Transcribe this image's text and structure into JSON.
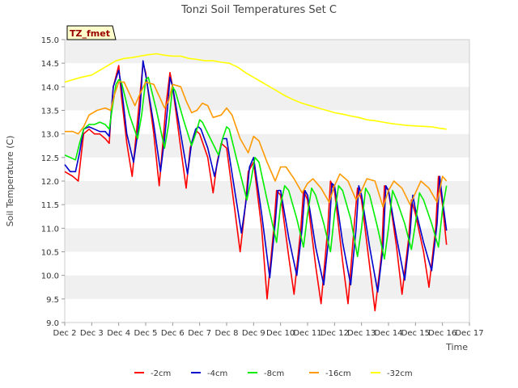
{
  "chart_data": {
    "type": "line",
    "title": "Tonzi Soil Temperatures Set C",
    "xlabel": "Time",
    "ylabel": "Soil Temperature (C)",
    "annotation": "TZ_fmet",
    "xlim": [
      2,
      17
    ],
    "ylim": [
      9.0,
      15.0
    ],
    "x_ticks": [
      {
        "value": 2,
        "label": "Dec 2"
      },
      {
        "value": 3,
        "label": "Dec 3"
      },
      {
        "value": 4,
        "label": "Dec 4"
      },
      {
        "value": 5,
        "label": "Dec 5"
      },
      {
        "value": 6,
        "label": "Dec 6"
      },
      {
        "value": 7,
        "label": "Dec 7"
      },
      {
        "value": 8,
        "label": "Dec 8"
      },
      {
        "value": 9,
        "label": "Dec 9"
      },
      {
        "value": 10,
        "label": "Dec 10"
      },
      {
        "value": 11,
        "label": "Dec 11"
      },
      {
        "value": 12,
        "label": "Dec 12"
      },
      {
        "value": 13,
        "label": "Dec 13"
      },
      {
        "value": 14,
        "label": "Dec 14"
      },
      {
        "value": 15,
        "label": "Dec 15"
      },
      {
        "value": 16,
        "label": "Dec 16"
      },
      {
        "value": 17,
        "label": "Dec 17"
      }
    ],
    "y_ticks": [
      {
        "value": 9.0,
        "label": "9.0"
      },
      {
        "value": 9.5,
        "label": "9.5"
      },
      {
        "value": 10.0,
        "label": "10.0"
      },
      {
        "value": 10.5,
        "label": "10.5"
      },
      {
        "value": 11.0,
        "label": "11.0"
      },
      {
        "value": 11.5,
        "label": "11.5"
      },
      {
        "value": 12.0,
        "label": "12.0"
      },
      {
        "value": 12.5,
        "label": "12.5"
      },
      {
        "value": 13.0,
        "label": "13.0"
      },
      {
        "value": 13.5,
        "label": "13.5"
      },
      {
        "value": 14.0,
        "label": "14.0"
      },
      {
        "value": 14.5,
        "label": "14.5"
      },
      {
        "value": 15.0,
        "label": "15.0"
      }
    ],
    "grid": "horizontal alternating bands",
    "legend_position": "bottom",
    "series": [
      {
        "name": "-2cm",
        "color": "#ff0000",
        "x": [
          2.0,
          2.3,
          2.5,
          2.6,
          2.7,
          2.9,
          3.1,
          3.3,
          3.5,
          3.65,
          3.7,
          3.8,
          4.0,
          4.1,
          4.3,
          4.5,
          4.65,
          4.75,
          4.9,
          5.0,
          5.3,
          5.5,
          5.65,
          5.75,
          5.9,
          6.0,
          6.3,
          6.5,
          6.65,
          6.8,
          6.9,
          7.0,
          7.3,
          7.5,
          7.65,
          7.8,
          8.0,
          8.3,
          8.5,
          8.7,
          8.8,
          9.0,
          9.3,
          9.5,
          9.75,
          9.85,
          10.0,
          10.3,
          10.5,
          10.75,
          10.85,
          11.0,
          11.3,
          11.5,
          11.75,
          11.85,
          12.0,
          12.3,
          12.5,
          12.75,
          12.85,
          13.0,
          13.3,
          13.5,
          13.75,
          13.85,
          14.0,
          14.3,
          14.5,
          14.75,
          14.85,
          15.0,
          15.3,
          15.5,
          15.75,
          15.85,
          16.0,
          16.15
        ],
        "y": [
          12.2,
          12.1,
          12.0,
          12.5,
          13.0,
          13.1,
          13.0,
          13.0,
          12.9,
          12.8,
          13.3,
          14.0,
          14.45,
          13.8,
          12.8,
          12.1,
          13.0,
          13.6,
          14.5,
          14.3,
          13.0,
          11.9,
          12.9,
          13.6,
          14.3,
          14.0,
          12.7,
          11.85,
          12.7,
          13.0,
          13.05,
          13.0,
          12.5,
          11.75,
          12.4,
          12.8,
          12.7,
          11.4,
          10.5,
          11.5,
          12.2,
          12.4,
          11.0,
          9.5,
          11.0,
          11.8,
          11.7,
          10.4,
          9.6,
          11.0,
          11.8,
          11.6,
          10.2,
          9.4,
          11.0,
          12.0,
          11.8,
          10.3,
          9.4,
          11.2,
          11.85,
          11.6,
          10.2,
          9.25,
          10.5,
          11.9,
          11.8,
          10.6,
          9.6,
          10.8,
          11.6,
          11.3,
          10.5,
          9.75,
          11.0,
          12.1,
          11.5,
          10.65
        ]
      },
      {
        "name": "-4cm",
        "color": "#0000cc",
        "x": [
          2.0,
          2.2,
          2.4,
          2.55,
          2.7,
          2.9,
          3.1,
          3.3,
          3.5,
          3.65,
          3.7,
          3.8,
          4.0,
          4.1,
          4.3,
          4.55,
          4.7,
          4.8,
          4.9,
          5.0,
          5.3,
          5.55,
          5.7,
          5.8,
          5.9,
          6.0,
          6.3,
          6.55,
          6.7,
          6.85,
          6.95,
          7.05,
          7.3,
          7.55,
          7.7,
          7.85,
          8.0,
          8.3,
          8.55,
          8.75,
          8.85,
          9.0,
          9.3,
          9.6,
          9.8,
          9.9,
          10.0,
          10.3,
          10.6,
          10.8,
          10.9,
          11.0,
          11.3,
          11.6,
          11.8,
          11.9,
          12.0,
          12.3,
          12.6,
          12.8,
          12.9,
          13.0,
          13.3,
          13.6,
          13.8,
          13.9,
          14.0,
          14.3,
          14.6,
          14.8,
          14.9,
          15.0,
          15.3,
          15.6,
          15.8,
          15.9,
          16.0,
          16.15
        ],
        "y": [
          12.35,
          12.2,
          12.2,
          12.6,
          13.1,
          13.15,
          13.1,
          13.05,
          13.05,
          12.95,
          13.3,
          14.0,
          14.35,
          14.0,
          13.0,
          12.4,
          13.0,
          13.6,
          14.55,
          14.25,
          13.2,
          12.2,
          12.9,
          13.5,
          14.2,
          14.0,
          13.0,
          12.15,
          12.8,
          13.1,
          13.15,
          13.1,
          12.7,
          12.1,
          12.5,
          12.9,
          12.9,
          11.8,
          10.9,
          11.7,
          12.3,
          12.5,
          11.3,
          9.95,
          11.1,
          11.8,
          11.8,
          10.8,
          10.0,
          11.0,
          11.8,
          11.7,
          10.6,
          9.8,
          10.9,
          11.95,
          11.9,
          10.7,
          9.8,
          11.0,
          11.9,
          11.7,
          10.6,
          9.65,
          10.6,
          11.9,
          11.8,
          10.8,
          9.9,
          10.9,
          11.7,
          11.4,
          10.7,
          10.1,
          11.1,
          12.1,
          11.6,
          10.95
        ]
      },
      {
        "name": "-8cm",
        "color": "#00ee00",
        "x": [
          2.0,
          2.2,
          2.4,
          2.55,
          2.7,
          2.9,
          3.1,
          3.3,
          3.5,
          3.65,
          3.75,
          3.9,
          4.0,
          4.1,
          4.4,
          4.7,
          4.85,
          5.0,
          5.1,
          5.4,
          5.7,
          5.85,
          6.0,
          6.1,
          6.4,
          6.7,
          6.85,
          7.0,
          7.1,
          7.4,
          7.7,
          7.85,
          8.0,
          8.1,
          8.4,
          8.75,
          8.9,
          9.05,
          9.2,
          9.5,
          9.85,
          10.0,
          10.15,
          10.3,
          10.6,
          10.85,
          11.0,
          11.15,
          11.3,
          11.6,
          11.85,
          12.0,
          12.15,
          12.3,
          12.6,
          12.85,
          13.0,
          13.15,
          13.3,
          13.6,
          13.85,
          14.0,
          14.15,
          14.3,
          14.6,
          14.85,
          15.0,
          15.15,
          15.3,
          15.6,
          15.85,
          16.0,
          16.15
        ],
        "y": [
          12.55,
          12.5,
          12.45,
          12.8,
          13.1,
          13.2,
          13.2,
          13.25,
          13.2,
          13.1,
          13.5,
          14.05,
          14.15,
          14.1,
          13.4,
          12.9,
          13.4,
          14.15,
          14.2,
          13.5,
          12.7,
          13.2,
          14.0,
          13.9,
          13.3,
          12.75,
          13.0,
          13.3,
          13.25,
          12.9,
          12.55,
          12.9,
          13.15,
          13.1,
          12.4,
          11.6,
          12.0,
          12.5,
          12.4,
          11.6,
          10.7,
          11.5,
          11.9,
          11.8,
          11.2,
          10.6,
          11.3,
          11.85,
          11.7,
          11.1,
          10.5,
          11.3,
          11.9,
          11.8,
          11.2,
          10.4,
          11.0,
          11.85,
          11.7,
          11.0,
          10.35,
          11.0,
          11.8,
          11.6,
          11.1,
          10.55,
          11.1,
          11.75,
          11.6,
          11.1,
          10.6,
          11.4,
          11.9
        ]
      },
      {
        "name": "-16cm",
        "color": "#ff9900",
        "x": [
          2.0,
          2.3,
          2.5,
          2.7,
          2.9,
          3.2,
          3.5,
          3.7,
          3.85,
          4.0,
          4.2,
          4.4,
          4.6,
          4.75,
          5.0,
          5.3,
          5.5,
          5.7,
          5.85,
          6.0,
          6.3,
          6.5,
          6.7,
          6.9,
          7.1,
          7.3,
          7.5,
          7.8,
          8.0,
          8.2,
          8.5,
          8.8,
          9.0,
          9.2,
          9.5,
          9.8,
          10.0,
          10.2,
          10.5,
          10.8,
          11.0,
          11.2,
          11.5,
          11.8,
          12.0,
          12.2,
          12.5,
          12.8,
          13.0,
          13.2,
          13.5,
          13.8,
          14.0,
          14.2,
          14.5,
          14.8,
          15.0,
          15.2,
          15.5,
          15.8,
          16.0,
          16.15
        ],
        "y": [
          13.05,
          13.05,
          13.0,
          13.15,
          13.4,
          13.5,
          13.55,
          13.5,
          13.85,
          14.1,
          14.1,
          13.85,
          13.6,
          13.8,
          14.1,
          14.05,
          13.8,
          13.55,
          13.7,
          14.05,
          14.0,
          13.7,
          13.45,
          13.5,
          13.65,
          13.6,
          13.35,
          13.4,
          13.55,
          13.4,
          12.9,
          12.6,
          12.95,
          12.85,
          12.4,
          12.0,
          12.3,
          12.3,
          12.05,
          11.75,
          11.95,
          12.05,
          11.85,
          11.55,
          11.9,
          12.15,
          12.0,
          11.6,
          11.8,
          12.05,
          12.0,
          11.45,
          11.8,
          12.0,
          11.85,
          11.5,
          11.75,
          12.0,
          11.85,
          11.55,
          12.1,
          12.0
        ]
      },
      {
        "name": "-32cm",
        "color": "#ffff00",
        "x": [
          2.0,
          2.3,
          2.6,
          3.0,
          3.3,
          3.6,
          3.9,
          4.2,
          4.5,
          4.8,
          5.1,
          5.4,
          5.7,
          6.0,
          6.3,
          6.6,
          6.9,
          7.2,
          7.5,
          7.8,
          8.1,
          8.4,
          8.7,
          9.0,
          9.3,
          9.6,
          9.9,
          10.2,
          10.5,
          10.8,
          11.1,
          11.4,
          11.7,
          12.0,
          12.3,
          12.6,
          12.9,
          13.2,
          13.5,
          13.8,
          14.1,
          14.4,
          14.7,
          15.0,
          15.3,
          15.6,
          15.9,
          16.15
        ],
        "y": [
          14.1,
          14.15,
          14.2,
          14.25,
          14.35,
          14.45,
          14.55,
          14.6,
          14.62,
          14.65,
          14.68,
          14.7,
          14.67,
          14.65,
          14.65,
          14.6,
          14.58,
          14.55,
          14.55,
          14.52,
          14.5,
          14.42,
          14.3,
          14.2,
          14.1,
          14.0,
          13.9,
          13.8,
          13.72,
          13.65,
          13.6,
          13.55,
          13.5,
          13.45,
          13.42,
          13.38,
          13.35,
          13.3,
          13.28,
          13.25,
          13.22,
          13.2,
          13.18,
          13.17,
          13.16,
          13.15,
          13.12,
          13.1
        ]
      }
    ]
  }
}
